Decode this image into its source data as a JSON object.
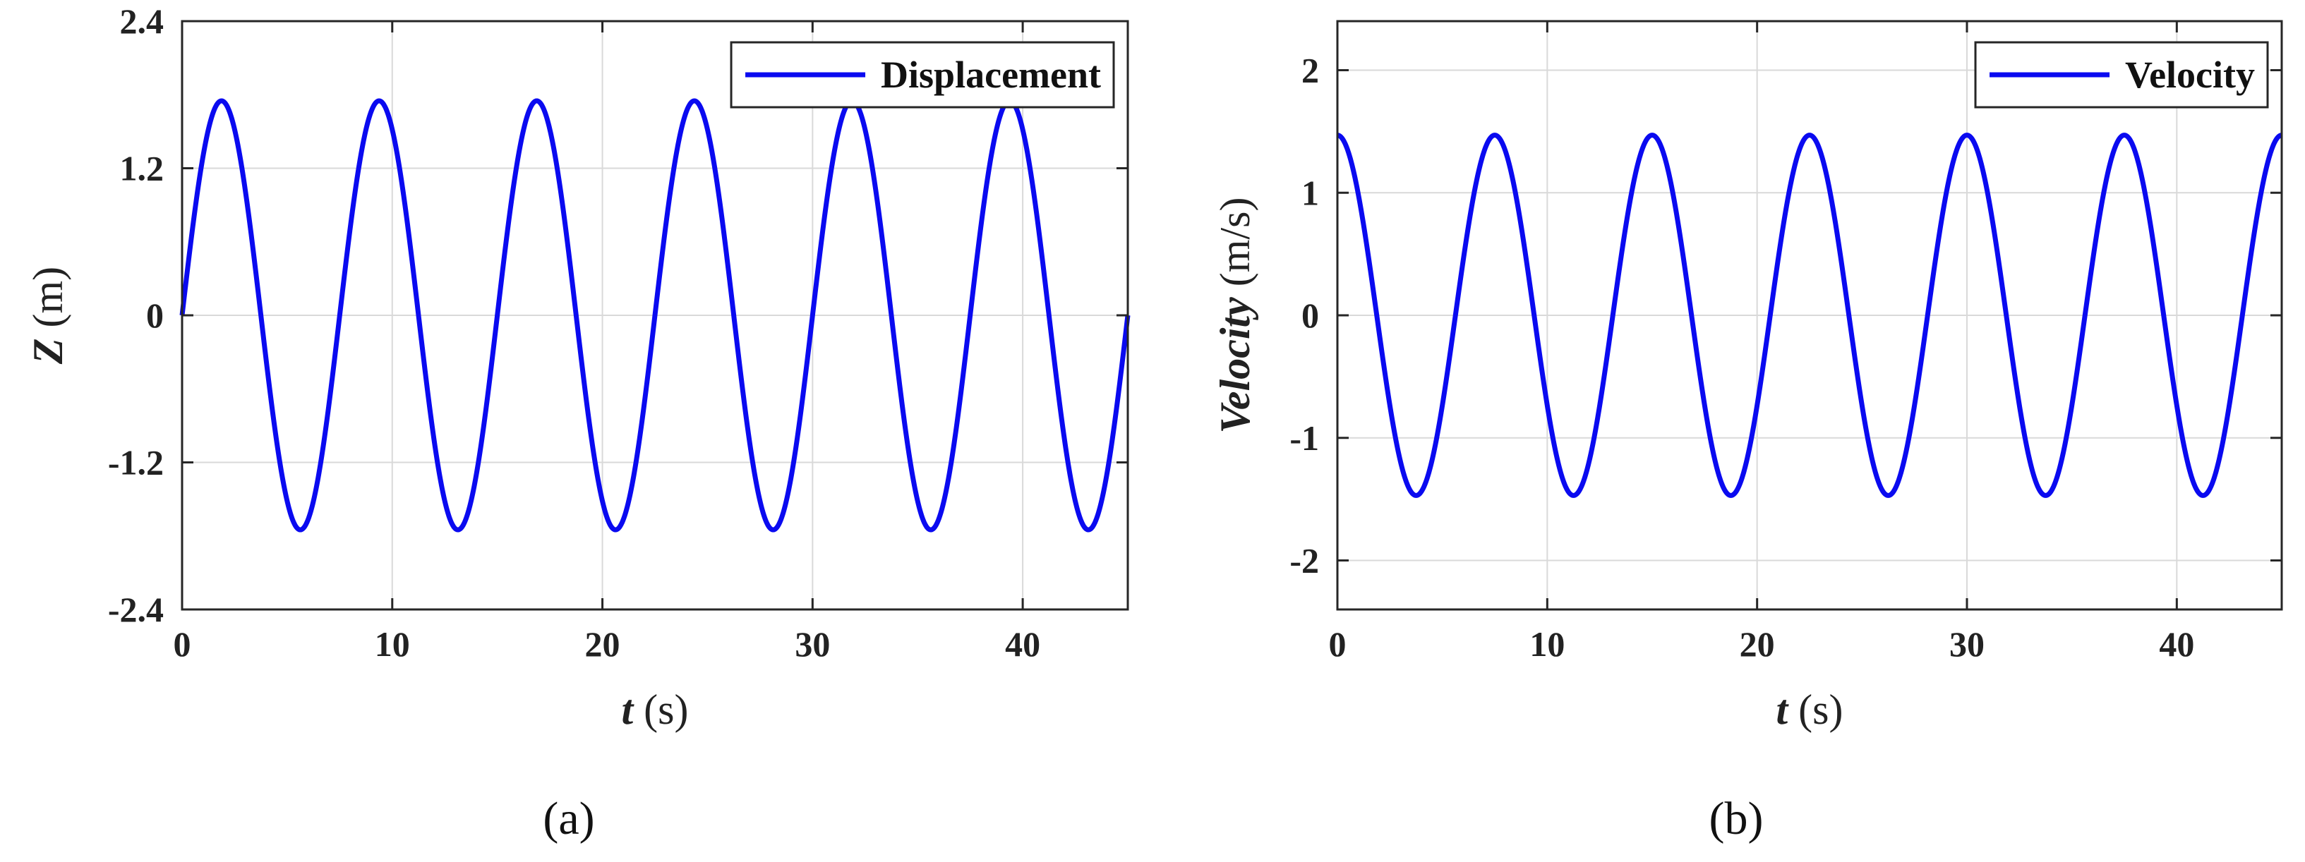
{
  "colors": {
    "series": "#0a0af0",
    "axes": "#262626",
    "grid": "#d9d9d9"
  },
  "chart_data": [
    {
      "type": "line",
      "panel_label": "(a)",
      "xlabel_italic": "t",
      "xlabel_unit": " (s)",
      "ylabel_italic": "Z",
      "ylabel_unit": " (m)",
      "xlim": [
        0,
        45
      ],
      "ylim": [
        -2.4,
        2.4
      ],
      "xticks": [
        0,
        10,
        20,
        30,
        40
      ],
      "xtick_labels": [
        "0",
        "10",
        "20",
        "30",
        "40"
      ],
      "yticks": [
        2.4,
        1.2,
        0,
        -1.2,
        -2.4
      ],
      "ytick_labels": [
        "2.4",
        "1.2",
        "0",
        "-1.2",
        "-2.4"
      ],
      "grid": true,
      "legend_position": "top-right",
      "series": [
        {
          "name": "Displacement",
          "function": "amplitude*sin(2*pi*t/period)",
          "amplitude": 1.75,
          "period": 7.5,
          "phase": "sine",
          "t_range": [
            0,
            45
          ]
        }
      ]
    },
    {
      "type": "line",
      "panel_label": "(b)",
      "xlabel_italic": "t",
      "xlabel_unit": " (s)",
      "ylabel_italic": "Velocity",
      "ylabel_unit": " (m/s)",
      "xlim": [
        0,
        45
      ],
      "ylim": [
        -2.4,
        2.4
      ],
      "xticks": [
        0,
        10,
        20,
        30,
        40
      ],
      "xtick_labels": [
        "0",
        "10",
        "20",
        "30",
        "40"
      ],
      "yticks": [
        2,
        1,
        0,
        -1,
        -2
      ],
      "ytick_labels": [
        "2",
        "1",
        "0",
        "-1",
        "-2"
      ],
      "grid": true,
      "legend_position": "top-right",
      "series": [
        {
          "name": "Velocity",
          "function": "amplitude*cos(2*pi*t/period)",
          "amplitude": 1.47,
          "period": 7.5,
          "phase": "cosine",
          "t_range": [
            0,
            45
          ]
        }
      ]
    }
  ]
}
